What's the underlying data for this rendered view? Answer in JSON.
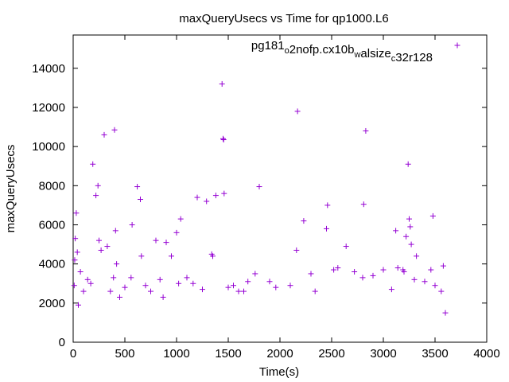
{
  "chart_data": {
    "type": "scatter",
    "title": "maxQueryUsecs vs Time for qp1000.L6",
    "xlabel": "Time(s)",
    "ylabel": "maxQueryUsecs",
    "xlim": [
      0,
      4000
    ],
    "ylim": [
      0,
      15700
    ],
    "xticks": [
      0,
      500,
      1000,
      1500,
      2000,
      2500,
      3000,
      3500,
      4000
    ],
    "yticks": [
      0,
      2000,
      4000,
      6000,
      8000,
      10000,
      12000,
      14000
    ],
    "grid": false,
    "legend_position": "top-right",
    "marker": "plus",
    "series": [
      {
        "name_parts": [
          {
            "t": "pg181",
            "sub": false
          },
          {
            "t": "o",
            "sub": true
          },
          {
            "t": "2nofp.cx10b",
            "sub": false
          },
          {
            "t": "w",
            "sub": true
          },
          {
            "t": "alsize",
            "sub": false
          },
          {
            "t": "c",
            "sub": true
          },
          {
            "t": "32r128",
            "sub": false
          }
        ],
        "color": "#9400d3",
        "points": [
          [
            10,
            2900
          ],
          [
            15,
            4200
          ],
          [
            20,
            5300
          ],
          [
            30,
            6600
          ],
          [
            40,
            4600
          ],
          [
            50,
            1900
          ],
          [
            70,
            3600
          ],
          [
            100,
            2600
          ],
          [
            140,
            3200
          ],
          [
            170,
            3000
          ],
          [
            190,
            9100
          ],
          [
            220,
            7500
          ],
          [
            240,
            8000
          ],
          [
            250,
            5200
          ],
          [
            270,
            4700
          ],
          [
            300,
            10600
          ],
          [
            330,
            4900
          ],
          [
            360,
            2600
          ],
          [
            390,
            3300
          ],
          [
            400,
            10850
          ],
          [
            410,
            5700
          ],
          [
            420,
            4000
          ],
          [
            450,
            2300
          ],
          [
            500,
            2800
          ],
          [
            560,
            3300
          ],
          [
            570,
            6000
          ],
          [
            620,
            7950
          ],
          [
            650,
            7300
          ],
          [
            660,
            4400
          ],
          [
            700,
            2900
          ],
          [
            750,
            2600
          ],
          [
            800,
            5200
          ],
          [
            840,
            3200
          ],
          [
            870,
            2300
          ],
          [
            900,
            5100
          ],
          [
            950,
            4400
          ],
          [
            1000,
            5600
          ],
          [
            1020,
            3000
          ],
          [
            1040,
            6300
          ],
          [
            1100,
            3300
          ],
          [
            1160,
            3000
          ],
          [
            1200,
            7400
          ],
          [
            1250,
            2700
          ],
          [
            1290,
            7200
          ],
          [
            1340,
            4500
          ],
          [
            1350,
            4400
          ],
          [
            1380,
            7500
          ],
          [
            1440,
            13200
          ],
          [
            1450,
            10400
          ],
          [
            1455,
            10350
          ],
          [
            1460,
            7600
          ],
          [
            1500,
            2800
          ],
          [
            1550,
            2900
          ],
          [
            1600,
            2600
          ],
          [
            1650,
            2600
          ],
          [
            1690,
            3100
          ],
          [
            1760,
            3500
          ],
          [
            1800,
            7950
          ],
          [
            1900,
            3100
          ],
          [
            1960,
            2800
          ],
          [
            2100,
            2900
          ],
          [
            2160,
            4700
          ],
          [
            2170,
            11800
          ],
          [
            2230,
            6200
          ],
          [
            2300,
            3500
          ],
          [
            2340,
            2600
          ],
          [
            2450,
            5800
          ],
          [
            2460,
            7000
          ],
          [
            2520,
            3700
          ],
          [
            2560,
            3800
          ],
          [
            2640,
            4900
          ],
          [
            2720,
            3600
          ],
          [
            2800,
            3300
          ],
          [
            2810,
            7050
          ],
          [
            2830,
            10800
          ],
          [
            2900,
            3400
          ],
          [
            3000,
            3700
          ],
          [
            3080,
            2700
          ],
          [
            3120,
            5700
          ],
          [
            3140,
            3800
          ],
          [
            3190,
            3700
          ],
          [
            3200,
            3600
          ],
          [
            3220,
            5400
          ],
          [
            3240,
            9100
          ],
          [
            3250,
            6300
          ],
          [
            3260,
            5900
          ],
          [
            3270,
            5000
          ],
          [
            3300,
            3200
          ],
          [
            3320,
            4400
          ],
          [
            3400,
            3100
          ],
          [
            3460,
            3700
          ],
          [
            3480,
            6450
          ],
          [
            3500,
            2900
          ],
          [
            3560,
            2600
          ],
          [
            3580,
            3900
          ],
          [
            3600,
            1500
          ]
        ]
      }
    ]
  }
}
